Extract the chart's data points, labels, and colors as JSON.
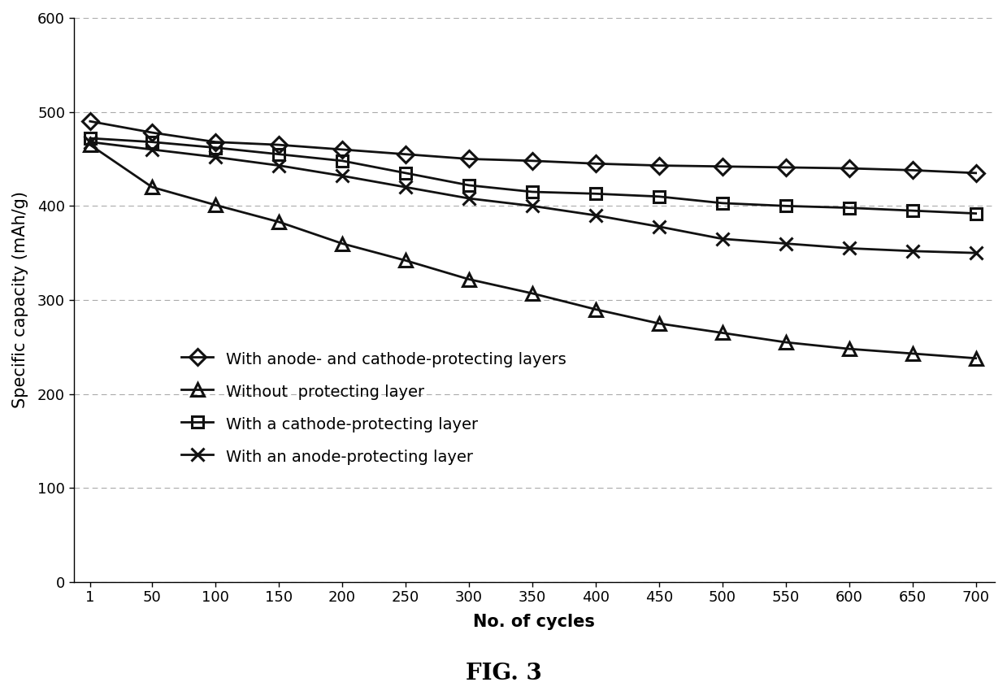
{
  "x": [
    1,
    50,
    100,
    150,
    200,
    250,
    300,
    350,
    400,
    450,
    500,
    550,
    600,
    650,
    700
  ],
  "series_order": [
    "anode_cathode",
    "no_layer",
    "cathode_only",
    "anode_only"
  ],
  "series": {
    "anode_cathode": {
      "label": "With anode- and cathode-protecting layers",
      "marker": "D",
      "linestyle": "-",
      "values": [
        490,
        478,
        468,
        465,
        460,
        455,
        450,
        448,
        445,
        443,
        442,
        441,
        440,
        438,
        435
      ]
    },
    "no_layer": {
      "label": "Without  protecting layer",
      "marker": "^",
      "linestyle": "-",
      "values": [
        465,
        420,
        401,
        383,
        360,
        342,
        322,
        307,
        290,
        275,
        265,
        255,
        248,
        243,
        238
      ]
    },
    "cathode_only": {
      "label": "With a cathode-protecting layer",
      "marker": "s",
      "linestyle": "-",
      "values": [
        472,
        468,
        462,
        455,
        448,
        435,
        422,
        415,
        413,
        410,
        403,
        400,
        398,
        395,
        392
      ]
    },
    "anode_only": {
      "label": "With an anode-protecting layer",
      "marker": "x",
      "linestyle": "-",
      "values": [
        468,
        460,
        452,
        443,
        432,
        420,
        408,
        400,
        390,
        378,
        365,
        360,
        355,
        352,
        350
      ]
    }
  },
  "xlabel": "No. of cycles",
  "ylabel": "Specific capacity (mAh/g)",
  "ylim": [
    0,
    600
  ],
  "xlim_left": 1,
  "xlim_right": 700,
  "yticks": [
    0,
    100,
    200,
    300,
    400,
    500,
    600
  ],
  "xticks": [
    1,
    50,
    100,
    150,
    200,
    250,
    300,
    350,
    400,
    450,
    500,
    550,
    600,
    650,
    700
  ],
  "fig_label": "FIG. 3",
  "line_color": "#111111",
  "grid_color": "#aaaaaa",
  "background_color": "#ffffff",
  "axis_label_fontsize": 15,
  "tick_fontsize": 13,
  "legend_fontsize": 14,
  "fig_label_fontsize": 20,
  "linewidth": 2.0,
  "markersize_diamond": 10,
  "markersize_triangle": 11,
  "markersize_square": 10,
  "markersize_x": 12,
  "markeredgewidth": 2.2
}
